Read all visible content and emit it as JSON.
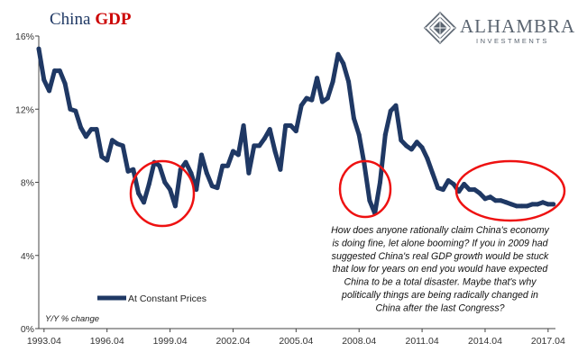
{
  "colors": {
    "series": "#1f3864",
    "title_country": "#1f3864",
    "title_accent": "#cc0000",
    "circle": "#ee1111",
    "brand": "#5a6470",
    "axis": "#444444"
  },
  "title": {
    "country": "China",
    "metric": "GDP"
  },
  "logo": {
    "name": "ALHAMBRA",
    "sub": "INVESTMENTS"
  },
  "annotation": {
    "lines": [
      "How does anyone rationally claim China's economy",
      "is doing fine, let alone booming? If you in 2009 had",
      "suggested China's real GDP growth would be stuck",
      "that low for years on end you would have expected",
      "China to be a total disaster. Maybe that's why",
      "politically things are being radically changed in",
      "China after the last Congress?"
    ]
  },
  "chart_data": {
    "type": "line",
    "title": "China GDP",
    "ylabel": "Y/Y % change",
    "ylim": [
      0,
      16
    ],
    "y_ticks": [
      0,
      4,
      8,
      12,
      16
    ],
    "y_tick_labels": [
      "0%",
      "4%",
      "8%",
      "12%",
      "16%"
    ],
    "x_ticks": [
      1993.25,
      1996.25,
      1999.25,
      2002.25,
      2005.25,
      2008.25,
      2011.25,
      2014.25,
      2017.25
    ],
    "x_tick_labels": [
      "1993.04",
      "1996.04",
      "1999.04",
      "2002.04",
      "2005.04",
      "2008.04",
      "2011.04",
      "2014.04",
      "2017.04"
    ],
    "xlim": [
      1993.0,
      2017.6
    ],
    "legend_position": "bottom-left",
    "grid": false,
    "series": [
      {
        "name": "At Constant Prices",
        "x": [
          1993.0,
          1993.25,
          1993.5,
          1993.75,
          1994.0,
          1994.25,
          1994.5,
          1994.75,
          1995.0,
          1995.25,
          1995.5,
          1995.75,
          1996.0,
          1996.25,
          1996.5,
          1996.75,
          1997.0,
          1997.25,
          1997.5,
          1997.75,
          1998.0,
          1998.25,
          1998.5,
          1998.75,
          1999.0,
          1999.25,
          1999.5,
          1999.75,
          2000.0,
          2000.25,
          2000.5,
          2000.75,
          2001.0,
          2001.25,
          2001.5,
          2001.75,
          2002.0,
          2002.25,
          2002.5,
          2002.75,
          2003.0,
          2003.25,
          2003.5,
          2003.75,
          2004.0,
          2004.25,
          2004.5,
          2004.75,
          2005.0,
          2005.25,
          2005.5,
          2005.75,
          2006.0,
          2006.25,
          2006.5,
          2006.75,
          2007.0,
          2007.25,
          2007.5,
          2007.75,
          2008.0,
          2008.25,
          2008.5,
          2008.75,
          2009.0,
          2009.25,
          2009.5,
          2009.75,
          2010.0,
          2010.25,
          2010.5,
          2010.75,
          2011.0,
          2011.25,
          2011.5,
          2011.75,
          2012.0,
          2012.25,
          2012.5,
          2012.75,
          2013.0,
          2013.25,
          2013.5,
          2013.75,
          2014.0,
          2014.25,
          2014.5,
          2014.75,
          2015.0,
          2015.25,
          2015.5,
          2015.75,
          2016.0,
          2016.25,
          2016.5,
          2016.75,
          2017.0,
          2017.25,
          2017.5
        ],
        "values": [
          15.3,
          13.6,
          13.0,
          14.1,
          14.1,
          13.4,
          12.0,
          11.9,
          11.0,
          10.5,
          10.9,
          10.9,
          9.4,
          9.2,
          10.3,
          10.1,
          10.0,
          8.6,
          8.7,
          7.4,
          6.9,
          7.9,
          9.1,
          8.9,
          8.0,
          7.6,
          6.7,
          8.7,
          9.1,
          8.5,
          7.6,
          9.5,
          8.5,
          7.8,
          7.7,
          8.9,
          8.9,
          9.7,
          9.5,
          11.1,
          8.5,
          10.0,
          10.0,
          10.4,
          10.9,
          9.7,
          8.7,
          11.1,
          11.1,
          10.8,
          12.2,
          12.6,
          12.5,
          13.7,
          12.4,
          12.6,
          13.5,
          15.0,
          14.5,
          13.5,
          11.5,
          10.6,
          9.0,
          7.0,
          6.3,
          8.0,
          10.6,
          11.9,
          12.2,
          10.3,
          10.0,
          9.8,
          10.2,
          9.9,
          9.3,
          8.5,
          7.7,
          7.6,
          8.1,
          7.9,
          7.5,
          7.9,
          7.6,
          7.6,
          7.4,
          7.1,
          7.2,
          7.0,
          7.0,
          6.9,
          6.8,
          6.7,
          6.7,
          6.7,
          6.8,
          6.8,
          6.9,
          6.8,
          6.8
        ]
      }
    ]
  }
}
